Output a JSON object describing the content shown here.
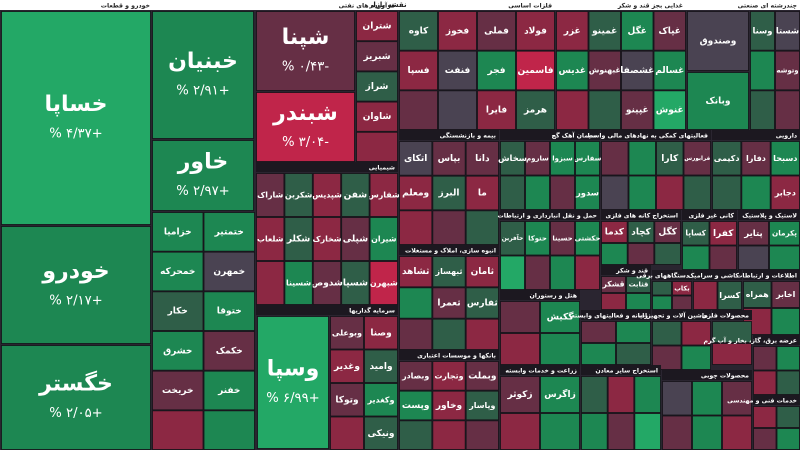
{
  "chart_data": {
    "type": "treemap",
    "title": "نقشه بازار",
    "color_scale": [
      "#c0254a",
      "#8c2843",
      "#662f45",
      "#4a4352",
      "#2f5e48",
      "#1d8752",
      "#23a866"
    ],
    "sectors": [
      {
        "name": "خودرو و قطعات",
        "tiles": [
          {
            "name": "خساپا",
            "value": 4.37,
            "value_label": "% ۴/۳۷+"
          },
          {
            "name": "خودرو",
            "value": 2.17,
            "value_label": "% ۲/۱۷+"
          },
          {
            "name": "خگستر",
            "value": 2.05,
            "value_label": "% ۲/۰۵+"
          },
          {
            "name": "خبنیان",
            "value": 2.91,
            "value_label": "% ۲/۹۱+"
          },
          {
            "name": "خاور",
            "value": 2.97,
            "value_label": "% ۲/۹۷+"
          },
          {
            "name": "ختمتیر",
            "value": 1.6
          },
          {
            "name": "خزامیا",
            "value": 1.9
          },
          {
            "name": "خمهرن",
            "value": 0.1
          },
          {
            "name": "خمحرکه",
            "value": 2.1
          },
          {
            "name": "ختوقا",
            "value": 1.2
          },
          {
            "name": "خکار",
            "value": 0.5
          },
          {
            "name": "خکمک",
            "value": -0.8
          },
          {
            "name": "خشرق",
            "value": 1.4
          },
          {
            "name": "خفنر",
            "value": 2.5
          },
          {
            "name": "خریخت",
            "value": -0.3
          },
          {
            "name": null,
            "value": 1.0
          },
          {
            "name": null,
            "value": -1.2
          }
        ]
      },
      {
        "name": "فرآورده های نفتی",
        "tiles": [
          {
            "name": "شپنا",
            "value": -0.43,
            "value_label": "% ۰/۴۳-"
          },
          {
            "name": "شبندر",
            "value": -3.04,
            "value_label": "% ۳/۰۴-"
          },
          {
            "name": "شتران",
            "value": -1.8
          },
          {
            "name": "شبریز",
            "value": -0.5
          },
          {
            "name": "شراز",
            "value": 0.3
          },
          {
            "name": "شاوان",
            "value": -1.1
          },
          {
            "name": null,
            "value": -2.4
          }
        ]
      },
      {
        "name": "فلزات اساسی",
        "tiles": [
          {
            "name": "فولاد",
            "value": -1.2
          },
          {
            "name": "فملی",
            "value": -0.6
          },
          {
            "name": "فخوز",
            "value": -2.8
          },
          {
            "name": "کاوه",
            "value": 0.4
          },
          {
            "name": "فاسمین",
            "value": -3.5
          },
          {
            "name": "فجر",
            "value": 1.1
          },
          {
            "name": "فنفت",
            "value": -0.1
          },
          {
            "name": "فسپا",
            "value": -1.5
          },
          {
            "name": "هرمز",
            "value": 0.8
          },
          {
            "name": "فایرا",
            "value": -1.9
          },
          {
            "name": null,
            "value": 0.1
          },
          {
            "name": null,
            "value": -0.9
          }
        ]
      },
      {
        "name": "غذایی بجز قند و شکر",
        "tiles": [
          {
            "name": "غپاک",
            "value": -0.5
          },
          {
            "name": "غگل",
            "value": 1.8
          },
          {
            "name": "غمینو",
            "value": 0.3
          },
          {
            "name": "غزر",
            "value": -1.4
          },
          {
            "name": "غسالم",
            "value": 2.6
          },
          {
            "name": "غشصفا",
            "value": 0.1
          },
          {
            "name": "غبهنوش",
            "value": -0.2
          },
          {
            "name": "غدیس",
            "value": 1.1
          },
          {
            "name": "غنوش",
            "value": 3.1
          },
          {
            "name": "غپینو",
            "value": -0.7
          },
          {
            "name": null,
            "value": 0.6
          },
          {
            "name": null,
            "value": -1.0
          }
        ]
      },
      {
        "name": "چندرشته ای صنعتی",
        "tiles": [
          {
            "name": "وصندوق",
            "value": 0.1
          },
          {
            "name": "وبانک",
            "value": 2.4
          },
          {
            "name": "شستا",
            "value": -0.1
          },
          {
            "name": "وسنا",
            "value": 0.4
          },
          {
            "name": "وتوشه",
            "value": -0.9
          },
          {
            "name": null,
            "value": 1.3
          },
          {
            "name": null,
            "value": -0.2
          },
          {
            "name": null,
            "value": 0.7
          }
        ]
      },
      {
        "name": "شیمیایی",
        "tiles": [
          {
            "name": "شفارس",
            "value": -1.3
          },
          {
            "name": "شفن",
            "value": 0.2
          },
          {
            "name": "شپدیس",
            "value": -2.1
          },
          {
            "name": "شکربن",
            "value": 0.9
          },
          {
            "name": "شاراک",
            "value": -0.4
          },
          {
            "name": "شیران",
            "value": 1.5
          },
          {
            "name": "شپلی",
            "value": -0.2
          },
          {
            "name": "شخارک",
            "value": -2.6
          },
          {
            "name": "شکلر",
            "value": 0.3
          },
          {
            "name": "شلعاب",
            "value": -1.0
          },
          {
            "name": "شبهرن",
            "value": -3.2
          },
          {
            "name": "شسپا",
            "value": 0.6
          },
          {
            "name": "شدوص",
            "value": -0.5
          },
          {
            "name": "شسینا",
            "value": 1.1
          },
          {
            "name": null,
            "value": -1.8
          }
        ]
      },
      {
        "name": "سرمایه گذاریها",
        "tiles": [
          {
            "name": "وسپا",
            "value": 6.99,
            "value_label": "% ۶/۹۹+"
          },
          {
            "name": "وصنا",
            "value": -2.1
          },
          {
            "name": "وبوعلی",
            "value": -0.3
          },
          {
            "name": "وامید",
            "value": 0.5
          },
          {
            "name": "وغدیر",
            "value": -1.0
          },
          {
            "name": "وکغدیر",
            "value": 1.4
          },
          {
            "name": "وتوکا",
            "value": -0.6
          },
          {
            "name": "ونیکی",
            "value": 0.2
          },
          {
            "name": null,
            "value": -1.6
          }
        ]
      },
      {
        "name": "بیمه و بازنشستگی",
        "tiles": [
          {
            "name": "دانا",
            "value": -0.5
          },
          {
            "name": "بپاس",
            "value": -0.3
          },
          {
            "name": "اتکای",
            "value": 0.1
          },
          {
            "name": "ما",
            "value": -1.4
          },
          {
            "name": "البرز",
            "value": 0.9
          },
          {
            "name": "ومعلم",
            "value": -2.2
          },
          {
            "name": null,
            "value": 0.4
          },
          {
            "name": null,
            "value": -0.8
          },
          {
            "name": null,
            "value": -1.1
          }
        ]
      },
      {
        "name": "سیمان آهک گچ",
        "tiles": [
          {
            "name": "سفارس",
            "value": 1.6
          },
          {
            "name": "سبزوا",
            "value": 2.2
          },
          {
            "name": "ساروم",
            "value": -0.4
          },
          {
            "name": "سخاش",
            "value": 0.8
          },
          {
            "name": "سدور",
            "value": 1.3
          },
          {
            "name": null,
            "value": -0.6
          },
          {
            "name": null,
            "value": 2.8
          },
          {
            "name": null,
            "value": 0.2
          }
        ]
      },
      {
        "name": "فعالیتهای کمکی به نهادهای مالی واسط",
        "tiles": [
          {
            "name": "فرابورس",
            "value": -0.2
          },
          {
            "name": "کارا",
            "value": 0.6
          },
          {
            "name": null,
            "value": 1.2
          },
          {
            "name": null,
            "value": -0.9
          },
          {
            "name": null,
            "value": 0.3
          },
          {
            "name": null,
            "value": -1.7
          },
          {
            "name": null,
            "value": 2.1
          },
          {
            "name": null,
            "value": -0.1
          }
        ]
      },
      {
        "name": "دارویی",
        "tiles": [
          {
            "name": "دسبحا",
            "value": 1.4
          },
          {
            "name": "دفارا",
            "value": -0.7
          },
          {
            "name": "دکیمی",
            "value": 0.5
          },
          {
            "name": "دجابر",
            "value": -1.3
          },
          {
            "name": null,
            "value": 1.9
          },
          {
            "name": null,
            "value": 0.2
          }
        ]
      },
      {
        "name": "انبوه سازی، املاک و مستغلات",
        "tiles": [
          {
            "name": "ثامان",
            "value": -1.2
          },
          {
            "name": "ثبهساز",
            "value": 0.5
          },
          {
            "name": "ثشاهد",
            "value": -2.0
          },
          {
            "name": "ثفارس",
            "value": 0.2
          },
          {
            "name": "ثعمرا",
            "value": -0.6
          },
          {
            "name": null,
            "value": 1.0
          },
          {
            "name": null,
            "value": -1.5
          },
          {
            "name": null,
            "value": 0.3
          },
          {
            "name": null,
            "value": -0.2
          }
        ]
      },
      {
        "name": "حمل و نقل انبارداری و ارتباطات",
        "tiles": [
          {
            "name": "حکشتی",
            "value": 1.1
          },
          {
            "name": "حسینا",
            "value": -0.4
          },
          {
            "name": "حتوکا",
            "value": 2.3
          },
          {
            "name": "حآفرین",
            "value": 0.7
          },
          {
            "name": null,
            "value": -1.3
          },
          {
            "name": null,
            "value": 1.6
          },
          {
            "name": null,
            "value": -0.5
          },
          {
            "name": null,
            "value": 3.2
          }
        ]
      },
      {
        "name": "استخراج کانه های فلزی",
        "tiles": [
          {
            "name": "کگل",
            "value": -0.3
          },
          {
            "name": "کچاد",
            "value": 0.5
          },
          {
            "name": "کدما",
            "value": -1.1
          },
          {
            "name": null,
            "value": 0.9
          },
          {
            "name": null,
            "value": -0.4
          },
          {
            "name": null,
            "value": 1.7
          }
        ]
      },
      {
        "name": "کانی غیر فلزی",
        "tiles": [
          {
            "name": "کفرا",
            "value": -2.4
          },
          {
            "name": "کساپا",
            "value": 0.4
          },
          {
            "name": null,
            "value": -0.9
          },
          {
            "name": null,
            "value": 1.2
          }
        ]
      },
      {
        "name": "لاستیک و پلاستیک",
        "tiles": [
          {
            "name": "پکرمان",
            "value": 1.8
          },
          {
            "name": "پتایر",
            "value": -0.6
          },
          {
            "name": null,
            "value": 2.4
          },
          {
            "name": null,
            "value": 0.1
          }
        ]
      },
      {
        "name": "هتل و رستوران",
        "tiles": [
          {
            "name": "گکیش",
            "value": 1.5
          },
          {
            "name": null,
            "value": -0.3
          },
          {
            "name": null,
            "value": 2.7
          },
          {
            "name": null,
            "value": -1.4
          }
        ]
      },
      {
        "name": "قند و شکر",
        "tiles": [
          {
            "name": "قثابت",
            "value": 0.8
          },
          {
            "name": "قشکر",
            "value": -0.5
          },
          {
            "name": null,
            "value": 1.9
          },
          {
            "name": null,
            "value": -2.2
          }
        ]
      },
      {
        "name": "دستگاههای برقی",
        "tiles": [
          {
            "name": "بکاب",
            "value": -2.6
          },
          {
            "name": null,
            "value": 0.4
          },
          {
            "name": null,
            "value": -0.7
          },
          {
            "name": null,
            "value": 1.1
          }
        ]
      },
      {
        "name": "کاشی و سرامیک",
        "tiles": [
          {
            "name": "کسرا",
            "value": 0.3
          },
          {
            "name": null,
            "value": -1.0
          }
        ]
      },
      {
        "name": "اطلاعات و ارتباطات",
        "tiles": [
          {
            "name": "اخابر",
            "value": -0.4
          },
          {
            "name": "همراه",
            "value": 0.6
          },
          {
            "name": null,
            "value": 1.5
          },
          {
            "name": null,
            "value": -1.2
          }
        ]
      },
      {
        "name": "زراعت و خدمات وابسته",
        "tiles": [
          {
            "name": "زاگرس",
            "value": 1.3
          },
          {
            "name": "زکوثر",
            "value": -0.8
          },
          {
            "name": null,
            "value": 2.1
          },
          {
            "name": null,
            "value": -2.9
          }
        ]
      },
      {
        "name": "بانکها و موسسات اعتباری",
        "tiles": [
          {
            "name": "وبملت",
            "value": -0.2
          },
          {
            "name": "وتجارت",
            "value": -1.1
          },
          {
            "name": "وبصادر",
            "value": -0.5
          },
          {
            "name": "وپاسار",
            "value": 0.4
          },
          {
            "name": "وخاور",
            "value": -1.7
          },
          {
            "name": "وپست",
            "value": 1.2
          },
          {
            "name": null,
            "value": -0.3
          },
          {
            "name": null,
            "value": -2.5
          },
          {
            "name": null,
            "value": 0.8
          }
        ]
      },
      {
        "name": "رایانه و فعالیتهای وابسته",
        "tiles": [
          {
            "name": null,
            "value": 1.4
          },
          {
            "name": null,
            "value": -0.6
          },
          {
            "name": null,
            "value": 0.2
          },
          {
            "name": null,
            "value": 2.2
          }
        ]
      },
      {
        "name": "ماشین آلات و تجهیزات",
        "tiles": [
          {
            "name": null,
            "value": -1.3
          },
          {
            "name": null,
            "value": 0.7
          },
          {
            "name": null,
            "value": 1.8
          },
          {
            "name": null,
            "value": -0.2
          }
        ]
      },
      {
        "name": "محصولات فلزی",
        "tiles": [
          {
            "name": null,
            "value": 0.5
          },
          {
            "name": null,
            "value": -1.6
          }
        ]
      },
      {
        "name": "عرضه برق، گاز، بخار و آب گرم",
        "tiles": [
          {
            "name": null,
            "value": 2.0
          },
          {
            "name": null,
            "value": -0.4
          },
          {
            "name": null,
            "value": 0.9
          },
          {
            "name": null,
            "value": -1.2
          }
        ]
      },
      {
        "name": "استخراج سایر معادن",
        "tiles": [
          {
            "name": null,
            "value": 1.1
          },
          {
            "name": null,
            "value": -2.0
          },
          {
            "name": null,
            "value": 0.3
          },
          {
            "name": null,
            "value": 3.4
          },
          {
            "name": null,
            "value": -0.7
          },
          {
            "name": null,
            "value": 1.6
          }
        ]
      },
      {
        "name": "محصولات چوبی",
        "tiles": [
          {
            "name": null,
            "value": -0.9
          },
          {
            "name": null,
            "value": 2.6
          },
          {
            "name": null,
            "value": 0.1
          },
          {
            "name": null,
            "value": -1.8
          },
          {
            "name": null,
            "value": 1.2
          },
          {
            "name": null,
            "value": -0.3
          }
        ]
      },
      {
        "name": "خدمات فنی و مهندسی",
        "tiles": [
          {
            "name": null,
            "value": 0.6
          },
          {
            "name": null,
            "value": -1.1
          },
          {
            "name": null,
            "value": 1.9
          },
          {
            "name": null,
            "value": -0.2
          }
        ]
      }
    ]
  }
}
